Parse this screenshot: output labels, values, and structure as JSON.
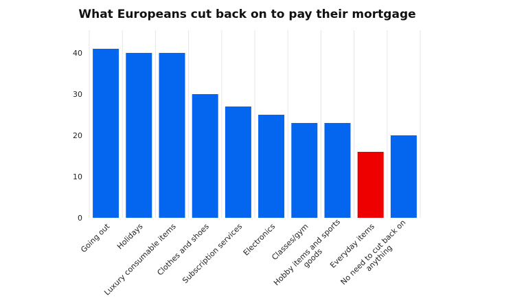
{
  "chart_data": {
    "type": "bar",
    "title": "What Europeans cut back on to pay their mortgage",
    "xlabel": "",
    "ylabel": "",
    "ylim": [
      0,
      45
    ],
    "yticks": [
      0,
      10,
      20,
      30,
      40
    ],
    "grid": true,
    "categories": [
      "Going out",
      "Holidays",
      "Luxury consumable items",
      "Clothes and shoes",
      "Subscription services",
      "Electronics",
      "Classes/gym",
      "Hobby items and sports goods",
      "Everyday items",
      "No need to cut back on anything"
    ],
    "category_label_lines": [
      [
        "Going out"
      ],
      [
        "Holidays"
      ],
      [
        "Luxury consumable items"
      ],
      [
        "Clothes and shoes"
      ],
      [
        "Subscription services"
      ],
      [
        "Electronics"
      ],
      [
        "Classes/gym"
      ],
      [
        "Hobby items and sports",
        "goods"
      ],
      [
        "Everyday items"
      ],
      [
        "No need to cut back on",
        "anything"
      ]
    ],
    "values": [
      41,
      40,
      40,
      30,
      27,
      25,
      23,
      23,
      16,
      20
    ],
    "colors": {
      "default": "#0466ee",
      "highlight": "#ee0000",
      "gridline": "#e6e6e6",
      "axis_text": "#222222"
    },
    "highlight_index": 8
  }
}
